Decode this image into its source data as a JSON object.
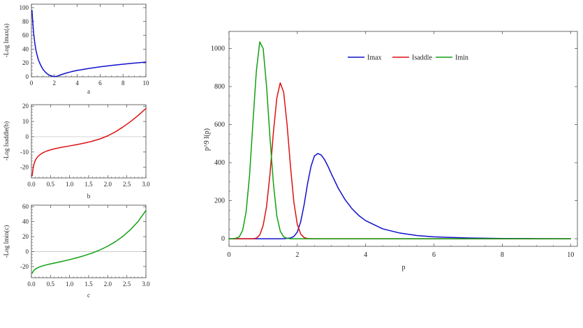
{
  "chart_data": [
    {
      "id": "a",
      "type": "line",
      "caption": "a",
      "ylabel": "-Log Imax(a)",
      "xlim": [
        0,
        10
      ],
      "ylim": [
        0,
        105
      ],
      "xticks": [
        0,
        2,
        4,
        6,
        8,
        10
      ],
      "yticks": [
        0,
        20,
        40,
        60,
        80,
        100
      ],
      "color": "#1010cc",
      "series": [
        {
          "x": [
            0.05,
            0.1,
            0.15,
            0.2,
            0.3,
            0.4,
            0.5,
            0.6,
            0.8,
            1.0,
            1.2,
            1.4,
            1.6,
            1.8,
            2.0,
            2.2,
            2.5,
            3.0,
            3.5,
            4.0,
            5.0,
            6.0,
            7.0,
            8.0,
            9.0,
            10.0
          ],
          "y": [
            96,
            83,
            72,
            62,
            48,
            38,
            31,
            25,
            17,
            11,
            7,
            4,
            2,
            1,
            0.3,
            0.6,
            2.5,
            5.2,
            7.4,
            9.2,
            12.0,
            14.4,
            16.4,
            18.2,
            19.8,
            21.2
          ]
        }
      ]
    },
    {
      "id": "b",
      "type": "line",
      "caption": "b",
      "ylabel": "-Log Isaddle(b)",
      "xlim": [
        0,
        3
      ],
      "ylim": [
        -27,
        21
      ],
      "xticks": [
        0.0,
        0.5,
        1.0,
        1.5,
        2.0,
        2.5,
        3.0
      ],
      "yticks": [
        -20,
        -10,
        0,
        10,
        20
      ],
      "color": "#dd1111",
      "series": [
        {
          "x": [
            0.02,
            0.05,
            0.1,
            0.15,
            0.2,
            0.3,
            0.4,
            0.5,
            0.6,
            0.8,
            1.0,
            1.2,
            1.4,
            1.6,
            1.8,
            2.0,
            2.2,
            2.4,
            2.6,
            2.8,
            3.0
          ],
          "y": [
            -25.5,
            -19.5,
            -15.5,
            -13.5,
            -12.2,
            -10.5,
            -9.4,
            -8.6,
            -7.9,
            -6.9,
            -6.0,
            -5.1,
            -4.1,
            -2.9,
            -1.4,
            0.6,
            3.2,
            6.4,
            10.0,
            14.0,
            18.5
          ]
        }
      ]
    },
    {
      "id": "c",
      "type": "line",
      "caption": "c",
      "ylabel": "-Log Imin(c)",
      "xlim": [
        0,
        3
      ],
      "ylim": [
        -35,
        62
      ],
      "xticks": [
        0.0,
        0.5,
        1.0,
        1.5,
        2.0,
        2.5,
        3.0
      ],
      "yticks": [
        -20,
        0,
        20,
        40,
        60
      ],
      "color": "#11a011",
      "series": [
        {
          "x": [
            0.02,
            0.05,
            0.1,
            0.15,
            0.2,
            0.3,
            0.4,
            0.5,
            0.6,
            0.8,
            1.0,
            1.2,
            1.4,
            1.6,
            1.8,
            2.0,
            2.2,
            2.4,
            2.6,
            2.8,
            3.0
          ],
          "y": [
            -29,
            -26,
            -23.5,
            -22,
            -20.8,
            -19,
            -17.7,
            -16.5,
            -15.4,
            -13.2,
            -10.8,
            -8.2,
            -5.2,
            -1.8,
            2.3,
            7.2,
            13.2,
            20.5,
            29.5,
            40.5,
            55.0
          ]
        }
      ]
    },
    {
      "id": "main",
      "type": "line",
      "xlabel": "p",
      "ylabel": "p^9 I(p)",
      "xlim": [
        0,
        10.2
      ],
      "ylim": [
        -40,
        1090
      ],
      "xticks": [
        0,
        2,
        4,
        6,
        8,
        10
      ],
      "yticks": [
        0,
        200,
        400,
        600,
        800,
        1000
      ],
      "legend_position": "top-center",
      "series": [
        {
          "name": "Imax",
          "color": "#1010cc",
          "x": [
            0.0,
            1.6,
            1.8,
            1.9,
            2.0,
            2.1,
            2.2,
            2.3,
            2.4,
            2.5,
            2.6,
            2.7,
            2.8,
            2.9,
            3.0,
            3.2,
            3.4,
            3.6,
            3.8,
            4.0,
            4.5,
            5.0,
            5.5,
            6.0,
            7.0,
            8.0,
            9.0,
            10.0
          ],
          "y": [
            0,
            0,
            4,
            12,
            35,
            90,
            180,
            290,
            380,
            435,
            448,
            440,
            415,
            380,
            340,
            265,
            205,
            158,
            122,
            95,
            52,
            30,
            17,
            10,
            4,
            1.5,
            0.5,
            0
          ]
        },
        {
          "name": "Isaddle",
          "color": "#dd1111",
          "x": [
            0.0,
            0.7,
            0.8,
            0.9,
            1.0,
            1.1,
            1.2,
            1.3,
            1.4,
            1.5,
            1.6,
            1.7,
            1.8,
            1.9,
            2.0,
            2.1,
            2.2,
            2.3,
            2.5,
            3.0,
            10.0
          ],
          "y": [
            0,
            0,
            3,
            20,
            70,
            170,
            340,
            560,
            740,
            820,
            770,
            600,
            380,
            190,
            75,
            24,
            6,
            1,
            0,
            0,
            0
          ]
        },
        {
          "name": "Imin",
          "color": "#11a011",
          "x": [
            0.0,
            0.1,
            0.2,
            0.3,
            0.4,
            0.5,
            0.6,
            0.7,
            0.8,
            0.9,
            1.0,
            1.1,
            1.2,
            1.3,
            1.4,
            1.5,
            1.6,
            1.7,
            1.8,
            2.0,
            10.0
          ],
          "y": [
            0,
            0,
            2,
            10,
            45,
            140,
            330,
            610,
            880,
            1035,
            1000,
            800,
            530,
            290,
            120,
            40,
            10,
            2,
            0,
            0,
            0
          ]
        }
      ]
    }
  ]
}
